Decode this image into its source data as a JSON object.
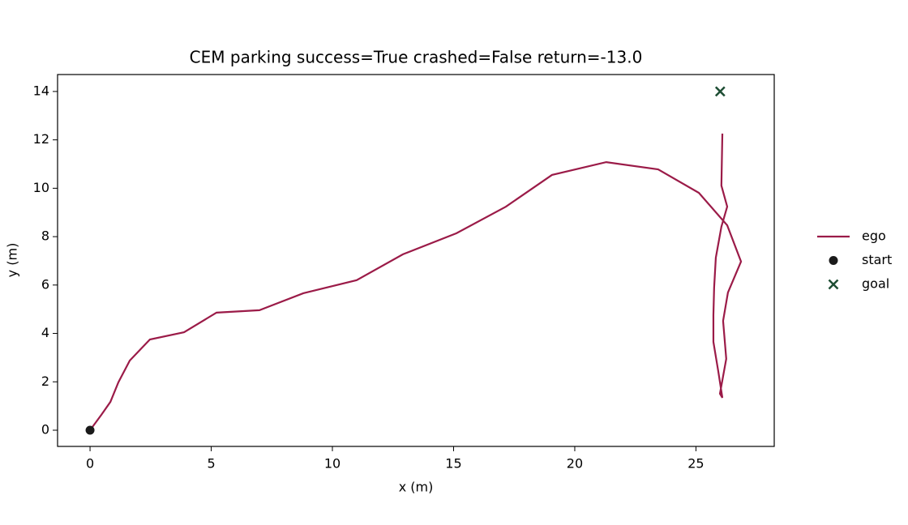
{
  "chart_data": {
    "type": "line",
    "title": "CEM parking  success=True  crashed=False  return=-13.0",
    "xlabel": "x (m)",
    "ylabel": "y (m)",
    "xlim": [
      -1.34,
      28.23
    ],
    "ylim": [
      -0.67,
      14.7
    ],
    "xticks": [
      0,
      5,
      10,
      15,
      20,
      25
    ],
    "yticks": [
      0,
      2,
      4,
      6,
      8,
      10,
      12,
      14
    ],
    "legend": "right",
    "series": [
      {
        "name": "ego",
        "color": "#9b1b48",
        "x": [
          0,
          0.47,
          0.84,
          1.17,
          1.64,
          2.47,
          3.88,
          5.22,
          6.99,
          8.8,
          11.0,
          12.91,
          15.12,
          17.16,
          19.06,
          21.3,
          23.44,
          25.12,
          26.29,
          26.86,
          26.32,
          26.12,
          26.25,
          25.99,
          26.09,
          25.92,
          25.72,
          25.72,
          25.75,
          25.82,
          26.05,
          26.29,
          26.05,
          26.09
        ],
        "y": [
          0,
          0.64,
          1.17,
          1.98,
          2.88,
          3.75,
          4.05,
          4.86,
          4.96,
          5.66,
          6.2,
          7.27,
          8.14,
          9.24,
          10.55,
          11.08,
          10.78,
          9.81,
          8.47,
          6.97,
          5.69,
          4.52,
          2.95,
          1.51,
          1.34,
          2.44,
          3.65,
          4.76,
          5.89,
          7.13,
          8.41,
          9.24,
          10.11,
          12.26
        ]
      }
    ],
    "points": [
      {
        "name": "start",
        "color": "#1a1a1a",
        "marker": "circle",
        "x": 0,
        "y": 0
      },
      {
        "name": "goal",
        "color": "#1d4d33",
        "marker": "x",
        "x": 26,
        "y": 14
      }
    ]
  }
}
